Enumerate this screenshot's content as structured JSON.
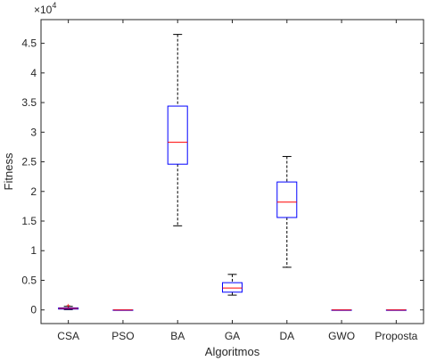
{
  "chart_data": {
    "type": "boxplot",
    "title": "",
    "xlabel": "Algoritmos",
    "ylabel": "Fitness",
    "exponent_label": "×10",
    "exponent_power": "4",
    "ylim": [
      -2300,
      49000
    ],
    "scale_factor": 10000,
    "yticks": [
      0,
      5000,
      10000,
      15000,
      20000,
      25000,
      30000,
      35000,
      40000,
      45000
    ],
    "ytick_labels": [
      "0",
      "0.5",
      "1",
      "1.5",
      "2",
      "2.5",
      "3",
      "3.5",
      "4",
      "4.5"
    ],
    "categories": [
      "CSA",
      "PSO",
      "BA",
      "GA",
      "DA",
      "GWO",
      "Proposta"
    ],
    "boxes": [
      {
        "label": "CSA",
        "whisker_low": 50,
        "q1": 150,
        "median": 250,
        "q3": 350,
        "whisker_high": 600,
        "outliers": [
          800
        ]
      },
      {
        "label": "PSO",
        "whisker_low": 0,
        "q1": 0,
        "median": 0,
        "q3": 0,
        "whisker_high": 0,
        "outliers": []
      },
      {
        "label": "BA",
        "whisker_low": 14200,
        "q1": 24600,
        "median": 28300,
        "q3": 34400,
        "whisker_high": 46500,
        "outliers": []
      },
      {
        "label": "GA",
        "whisker_low": 2500,
        "q1": 3000,
        "median": 3700,
        "q3": 4600,
        "whisker_high": 6000,
        "outliers": []
      },
      {
        "label": "DA",
        "whisker_low": 7200,
        "q1": 15600,
        "median": 18200,
        "q3": 21600,
        "whisker_high": 25900,
        "outliers": []
      },
      {
        "label": "GWO",
        "whisker_low": 0,
        "q1": 0,
        "median": 0,
        "q3": 0,
        "whisker_high": 0,
        "outliers": []
      },
      {
        "label": "Proposta",
        "whisker_low": 0,
        "q1": 0,
        "median": 0,
        "q3": 0,
        "whisker_high": 0,
        "outliers": []
      }
    ],
    "colors": {
      "box": "#0000ff",
      "median": "#ff0000",
      "whisker": "#000000",
      "axis": "#262626",
      "outlier": "#ff0000"
    },
    "grid": false,
    "legend": "none"
  }
}
